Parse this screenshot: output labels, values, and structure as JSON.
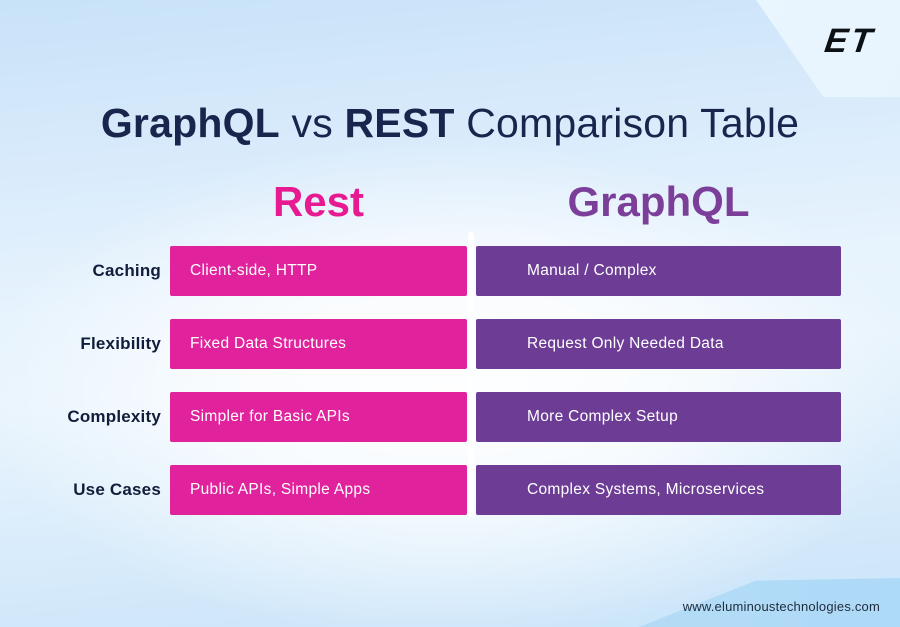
{
  "logo": {
    "text": "ET"
  },
  "title": {
    "parts": [
      "GraphQL",
      "vs",
      "REST",
      "Comparison Table"
    ]
  },
  "columns": {
    "rest": {
      "label": "Rest",
      "accent": "#e71a92",
      "bar_color": "#e0229c"
    },
    "graphql": {
      "label": "GraphQL",
      "accent": "#7b3f99",
      "bar_color": "#6d3d96"
    }
  },
  "rows": [
    {
      "label": "Caching",
      "rest": "Client-side, HTTP",
      "graphql": "Manual / Complex"
    },
    {
      "label": "Flexibility",
      "rest": "Fixed Data Structures",
      "graphql": "Request Only Needed Data"
    },
    {
      "label": "Complexity",
      "rest": "Simpler for Basic APIs",
      "graphql": "More Complex Setup"
    },
    {
      "label": "Use Cases",
      "rest": "Public APIs, Simple Apps",
      "graphql": "Complex Systems, Microservices"
    }
  ],
  "footer": {
    "website": "www.eluminoustechnologies.com"
  },
  "colors": {
    "title_navy": "#19254d",
    "background_blue": "#cde5f9"
  },
  "chart_data": {
    "type": "table",
    "title": "GraphQL vs REST Comparison Table",
    "columns": [
      "",
      "Rest",
      "GraphQL"
    ],
    "rows": [
      [
        "Caching",
        "Client-side, HTTP",
        "Manual / Complex"
      ],
      [
        "Flexibility",
        "Fixed Data Structures",
        "Request Only Needed Data"
      ],
      [
        "Complexity",
        "Simpler for Basic APIs",
        "More Complex Setup"
      ],
      [
        "Use Cases",
        "Public APIs, Simple Apps",
        "Complex Systems, Microservices"
      ]
    ]
  }
}
